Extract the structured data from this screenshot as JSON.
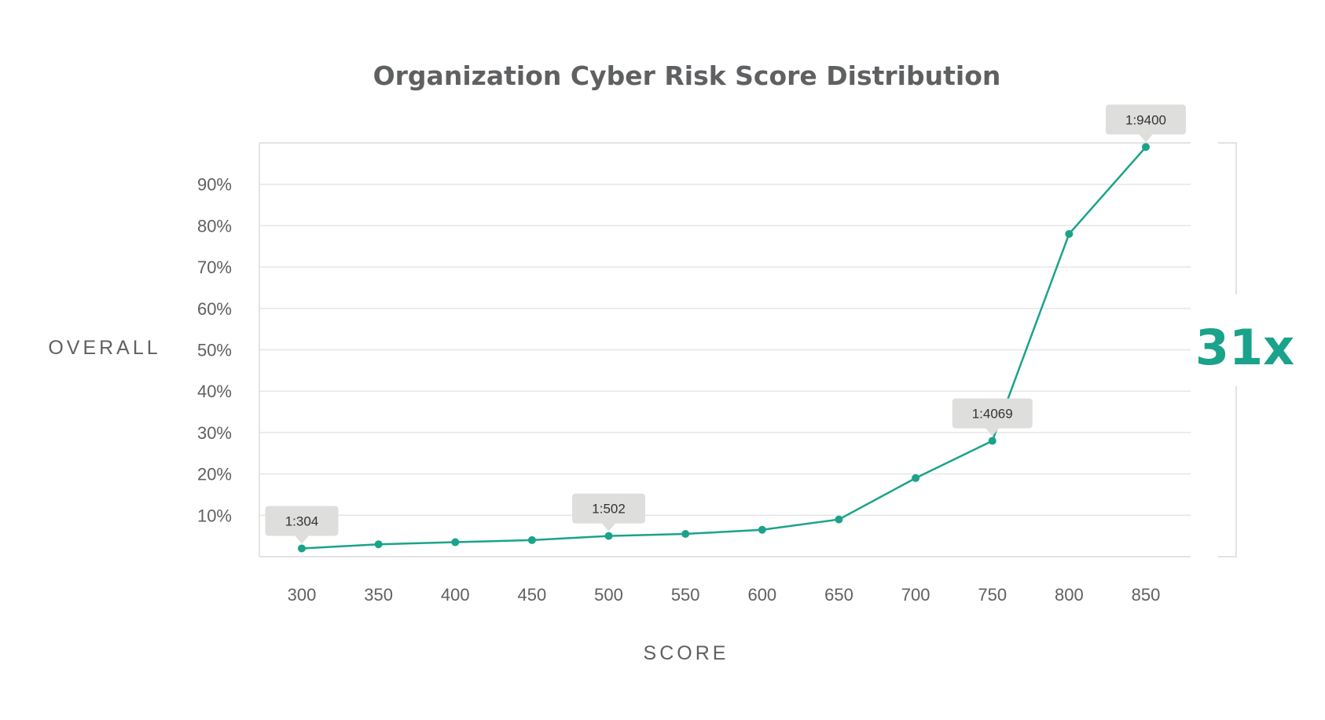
{
  "chart_data": {
    "type": "line",
    "title": "Organization Cyber Risk Score Distribution",
    "xlabel": "SCORE",
    "ylabel": "OVERALL",
    "x": [
      300,
      350,
      400,
      450,
      500,
      550,
      600,
      650,
      700,
      750,
      800,
      850
    ],
    "y_ticks": [
      "10%",
      "20%",
      "30%",
      "40%",
      "50%",
      "60%",
      "70%",
      "80%",
      "90%"
    ],
    "ylim": [
      0,
      100
    ],
    "grid": true,
    "series": [
      {
        "values": [
          2,
          3,
          3.5,
          4,
          5,
          5.5,
          6.5,
          9,
          19,
          28,
          78,
          99
        ],
        "color": "#1aa38a"
      }
    ],
    "annotations": [
      {
        "x": 300,
        "y": 2,
        "label": "1:304"
      },
      {
        "x": 500,
        "y": 5,
        "label": "1:502"
      },
      {
        "x": 750,
        "y": 28,
        "label": "1:4069"
      },
      {
        "x": 850,
        "y": 99,
        "label": "1:9400"
      }
    ],
    "ratio_label": "31x",
    "ratio_color": "#1aa38a"
  }
}
